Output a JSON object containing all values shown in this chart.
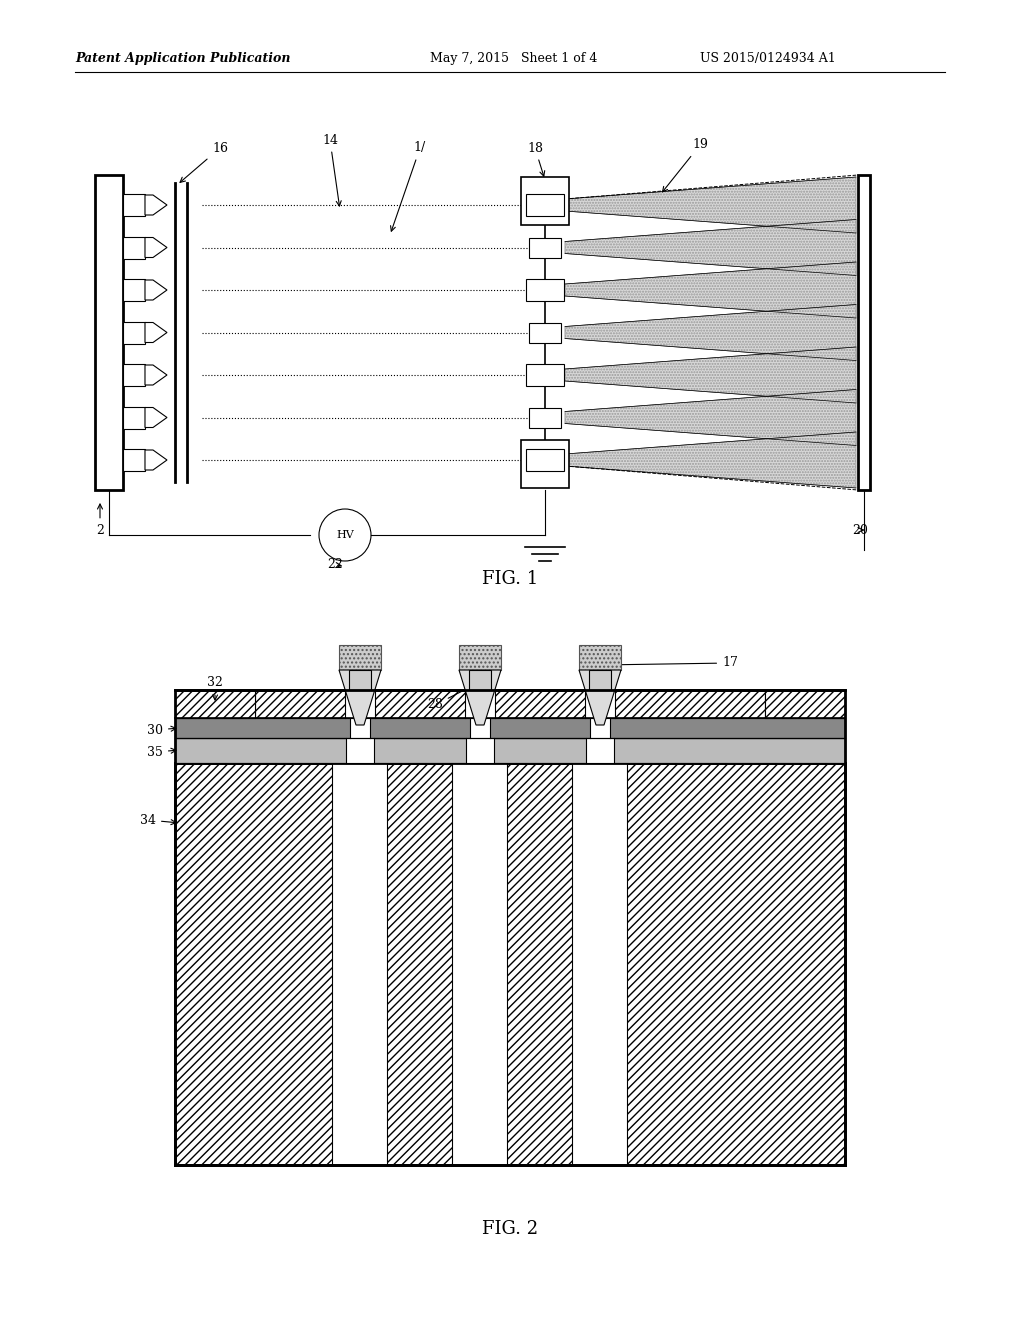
{
  "header_left": "Patent Application Publication",
  "header_mid": "May 7, 2015   Sheet 1 of 4",
  "header_right": "US 2015/0124934 A1",
  "fig1_label": "FIG. 1",
  "fig2_label": "FIG. 2",
  "bg_color": "#ffffff",
  "line_color": "#000000"
}
